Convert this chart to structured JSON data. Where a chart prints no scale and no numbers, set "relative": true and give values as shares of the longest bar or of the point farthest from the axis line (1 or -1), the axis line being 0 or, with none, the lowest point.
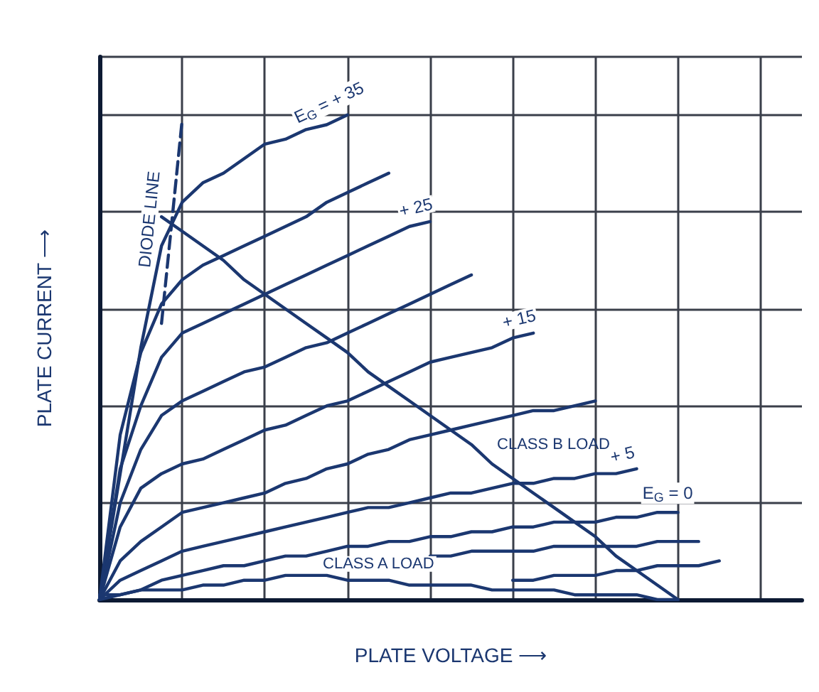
{
  "chart_data": {
    "type": "line",
    "relative": true,
    "xlabel": "PLATE VOLTAGE ⟶",
    "ylabel": "PLATE CURRENT ⟶",
    "categories": [
      null,
      null,
      null,
      null,
      null,
      null,
      null,
      null,
      null,
      null,
      null,
      null,
      null,
      null,
      null,
      null,
      null,
      null,
      null,
      null,
      null,
      null,
      null,
      null,
      null,
      null,
      null,
      null,
      null,
      null,
      null,
      null,
      null,
      null,
      null
    ],
    "grid": true,
    "marker": "none",
    "line_style": "solid",
    "series": [
      {
        "name": "E$_{G}$ = + 35",
        "color": "#1b3770",
        "values": [
          0,
          0.26,
          0.52,
          0.73,
          0.82,
          0.86,
          0.88,
          0.91,
          0.94,
          0.95,
          0.97,
          0.98,
          1.0,
          null,
          null,
          null,
          null,
          null,
          null,
          null,
          null,
          null,
          null,
          null,
          null,
          null,
          null,
          null,
          null,
          null,
          null,
          null,
          null,
          null,
          null
        ]
      },
      {
        "color": "#1b3770",
        "values": [
          0,
          0.34,
          0.51,
          0.61,
          0.66,
          0.69,
          0.71,
          0.73,
          0.75,
          0.77,
          0.79,
          0.82,
          0.84,
          0.86,
          0.88,
          null,
          null,
          null,
          null,
          null,
          null,
          null,
          null,
          null,
          null,
          null,
          null,
          null,
          null,
          null,
          null,
          null,
          null,
          null,
          null
        ]
      },
      {
        "name": "+ 25",
        "color": "#1b3770",
        "values": [
          0,
          0.27,
          0.4,
          0.5,
          0.55,
          0.57,
          0.59,
          0.61,
          0.63,
          0.65,
          0.67,
          0.69,
          0.71,
          0.73,
          0.75,
          0.77,
          0.78,
          null,
          null,
          null,
          null,
          null,
          null,
          null,
          null,
          null,
          null,
          null,
          null,
          null,
          null,
          null,
          null,
          null,
          null
        ]
      },
      {
        "color": "#1b3770",
        "values": [
          0,
          0.2,
          0.31,
          0.38,
          0.41,
          0.43,
          0.45,
          0.47,
          0.48,
          0.5,
          0.52,
          0.53,
          0.55,
          0.57,
          0.59,
          0.61,
          0.63,
          0.65,
          0.67,
          null,
          null,
          null,
          null,
          null,
          null,
          null,
          null,
          null,
          null,
          null,
          null,
          null,
          null,
          null,
          null
        ]
      },
      {
        "name": "+ 15",
        "color": "#1b3770",
        "values": [
          0,
          0.15,
          0.23,
          0.26,
          0.28,
          0.29,
          0.31,
          0.33,
          0.35,
          0.36,
          0.38,
          0.4,
          0.41,
          0.43,
          0.45,
          0.47,
          0.49,
          0.5,
          0.51,
          0.52,
          0.54,
          0.55,
          null,
          null,
          null,
          null,
          null,
          null,
          null,
          null,
          null,
          null,
          null,
          null,
          null
        ]
      },
      {
        "color": "#1b3770",
        "values": [
          0,
          0.08,
          0.12,
          0.15,
          0.18,
          0.19,
          0.2,
          0.21,
          0.22,
          0.24,
          0.25,
          0.27,
          0.28,
          0.3,
          0.31,
          0.33,
          0.34,
          0.35,
          0.36,
          0.37,
          0.38,
          0.39,
          0.39,
          0.4,
          0.41,
          null,
          null,
          null,
          null,
          null,
          null,
          null,
          null,
          null,
          null
        ]
      },
      {
        "name": "+ 5",
        "color": "#1b3770",
        "values": [
          0,
          0.04,
          0.06,
          0.08,
          0.1,
          0.11,
          0.12,
          0.13,
          0.14,
          0.15,
          0.16,
          0.17,
          0.18,
          0.19,
          0.19,
          0.2,
          0.21,
          0.22,
          0.22,
          0.23,
          0.24,
          0.24,
          0.25,
          0.25,
          0.26,
          0.26,
          0.27,
          null,
          null,
          null,
          null,
          null,
          null,
          null,
          null
        ]
      },
      {
        "name": "E$_{G}$ = 0",
        "color": "#1b3770",
        "values": [
          0,
          0.01,
          0.02,
          0.04,
          0.05,
          0.06,
          0.07,
          0.07,
          0.08,
          0.09,
          0.09,
          0.1,
          0.11,
          0.11,
          0.12,
          0.12,
          0.13,
          0.13,
          0.14,
          0.14,
          0.15,
          0.15,
          0.16,
          0.16,
          0.16,
          0.17,
          0.17,
          0.18,
          0.18,
          null,
          null,
          null,
          null,
          null,
          null
        ]
      },
      {
        "color": "#1b3770",
        "values": [
          null,
          null,
          null,
          null,
          null,
          null,
          null,
          null,
          null,
          null,
          null,
          null,
          null,
          null,
          null,
          null,
          0.09,
          0.09,
          0.1,
          0.1,
          0.1,
          0.1,
          0.11,
          0.11,
          0.11,
          0.11,
          0.11,
          0.12,
          0.12,
          0.12,
          null,
          null,
          null,
          null,
          null
        ]
      },
      {
        "color": "#1b3770",
        "values": [
          null,
          null,
          null,
          null,
          null,
          null,
          null,
          null,
          null,
          null,
          null,
          null,
          null,
          null,
          null,
          null,
          null,
          null,
          null,
          null,
          0.04,
          0.04,
          0.05,
          0.05,
          0.05,
          0.06,
          0.06,
          0.07,
          0.07,
          0.07,
          0.08,
          null,
          null,
          null,
          null
        ]
      },
      {
        "name": "CLASS A LOAD",
        "color": "#1b3770",
        "values": [
          0.01,
          0.01,
          0.02,
          0.02,
          0.02,
          0.03,
          0.03,
          0.04,
          0.04,
          0.05,
          0.05,
          0.05,
          0.04,
          0.04,
          0.04,
          0.03,
          0.03,
          0.03,
          0.03,
          0.02,
          0.02,
          0.02,
          0.02,
          0.01,
          0.01,
          0.01,
          0.01,
          0,
          0,
          null,
          null,
          null,
          null,
          null,
          null
        ]
      },
      {
        "name": "CLASS B LOAD",
        "color": "#1b3770",
        "values": [
          null,
          null,
          null,
          0.79,
          0.76,
          0.73,
          0.7,
          0.66,
          0.63,
          0.6,
          0.57,
          0.54,
          0.51,
          0.47,
          0.44,
          0.41,
          0.38,
          0.35,
          0.32,
          0.28,
          0.25,
          0.22,
          0.19,
          0.16,
          0.13,
          0.09,
          0.06,
          0.03,
          0,
          null,
          null,
          null,
          null,
          null,
          null
        ]
      },
      {
        "name": "DIODE LINE",
        "color": "#1b3770",
        "line_style": "dashed",
        "values": [
          null,
          null,
          null,
          0.57,
          0.99,
          null,
          null,
          null,
          null,
          null,
          null,
          null,
          null,
          null,
          null,
          null,
          null,
          null,
          null,
          null,
          null,
          null,
          null,
          null,
          null,
          null,
          null,
          null,
          null,
          null,
          null,
          null,
          null,
          null,
          null
        ]
      }
    ]
  }
}
